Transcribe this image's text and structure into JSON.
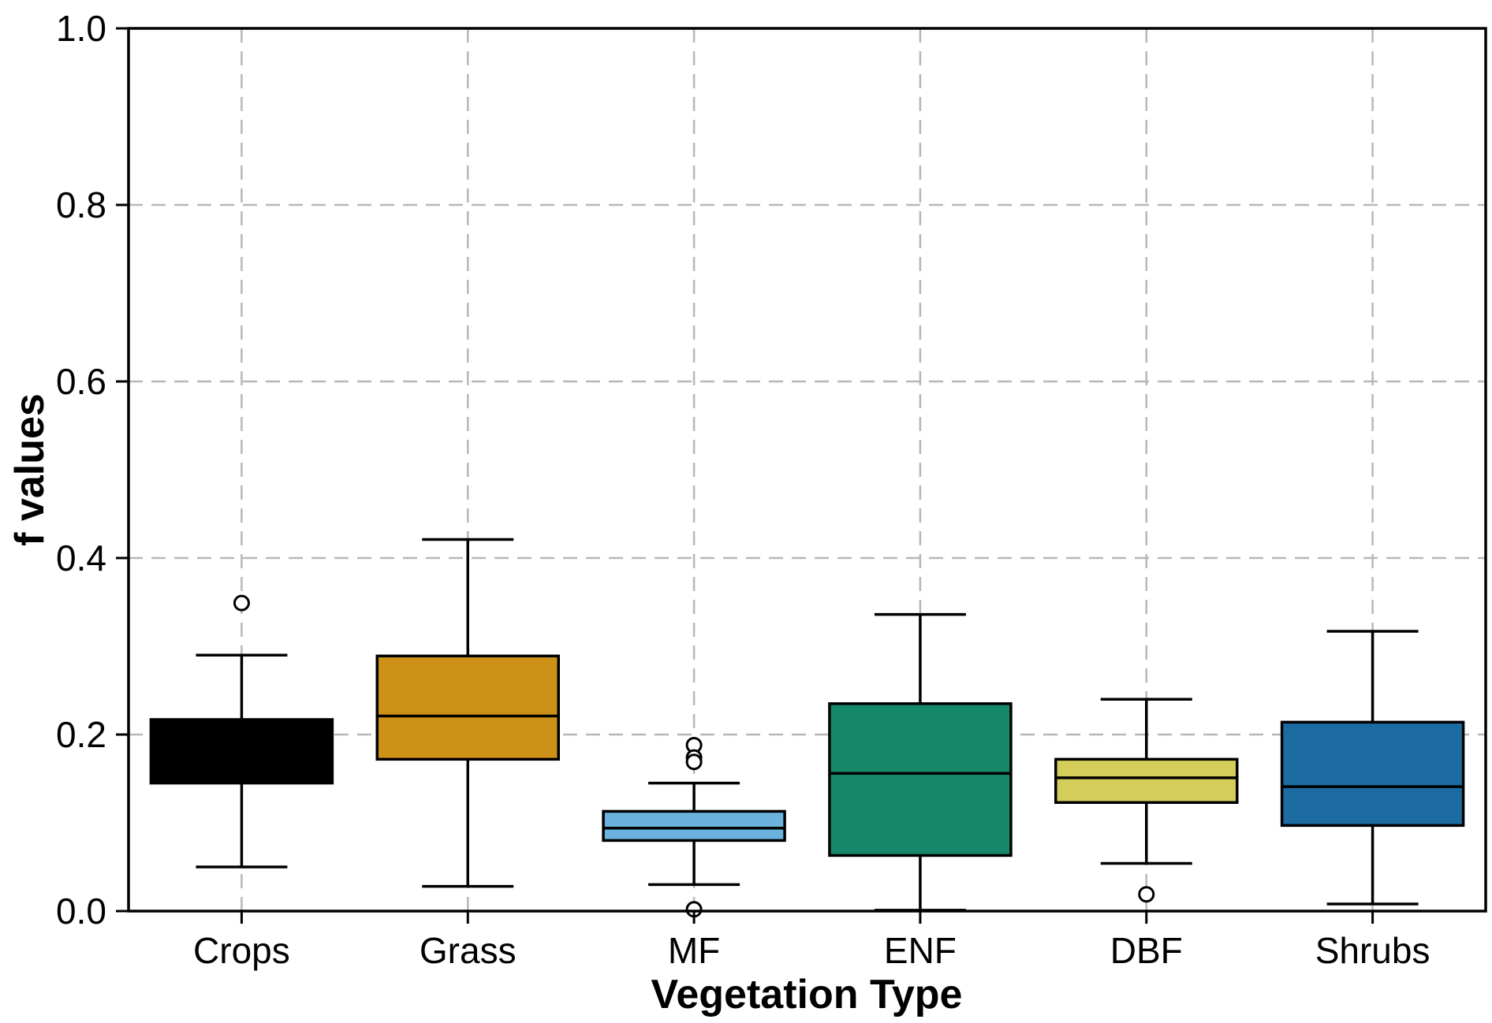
{
  "figure": {
    "background": "#ffffff",
    "grid_color": "#b7b7b7",
    "edge_color": "#000000"
  },
  "chart_data": {
    "type": "boxplot",
    "title": "",
    "xlabel": "Vegetation Type",
    "ylabel": "f values",
    "categories": [
      "Crops",
      "Grass",
      "MF",
      "ENF",
      "DBF",
      "Shrubs"
    ],
    "ylim": [
      0.0,
      1.0
    ],
    "yticks": [
      0.0,
      0.2,
      0.4,
      0.6,
      0.8,
      1.0
    ],
    "grid": {
      "horizontal": true,
      "vertical": true,
      "style": "dashed"
    },
    "legend": "none",
    "series": [
      {
        "name": "Crops",
        "color": "#000000",
        "whisker_low": 0.05,
        "q1": 0.145,
        "median": 0.19,
        "q3": 0.217,
        "whisker_high": 0.29,
        "outliers": [
          0.349
        ]
      },
      {
        "name": "Grass",
        "color": "#cd9118",
        "whisker_low": 0.028,
        "q1": 0.172,
        "median": 0.221,
        "q3": 0.289,
        "whisker_high": 0.421,
        "outliers": []
      },
      {
        "name": "MF",
        "color": "#6cb2de",
        "whisker_low": 0.03,
        "q1": 0.08,
        "median": 0.094,
        "q3": 0.113,
        "whisker_high": 0.145,
        "outliers": [
          0.188,
          0.174,
          0.169,
          0.002
        ]
      },
      {
        "name": "ENF",
        "color": "#16896a",
        "whisker_low": 0.001,
        "q1": 0.063,
        "median": 0.156,
        "q3": 0.235,
        "whisker_high": 0.336,
        "outliers": []
      },
      {
        "name": "DBF",
        "color": "#d5cd5a",
        "whisker_low": 0.054,
        "q1": 0.123,
        "median": 0.151,
        "q3": 0.172,
        "whisker_high": 0.24,
        "outliers": [
          0.019
        ]
      },
      {
        "name": "Shrubs",
        "color": "#1c6ba3",
        "whisker_low": 0.008,
        "q1": 0.097,
        "median": 0.141,
        "q3": 0.214,
        "whisker_high": 0.317,
        "outliers": []
      }
    ]
  }
}
